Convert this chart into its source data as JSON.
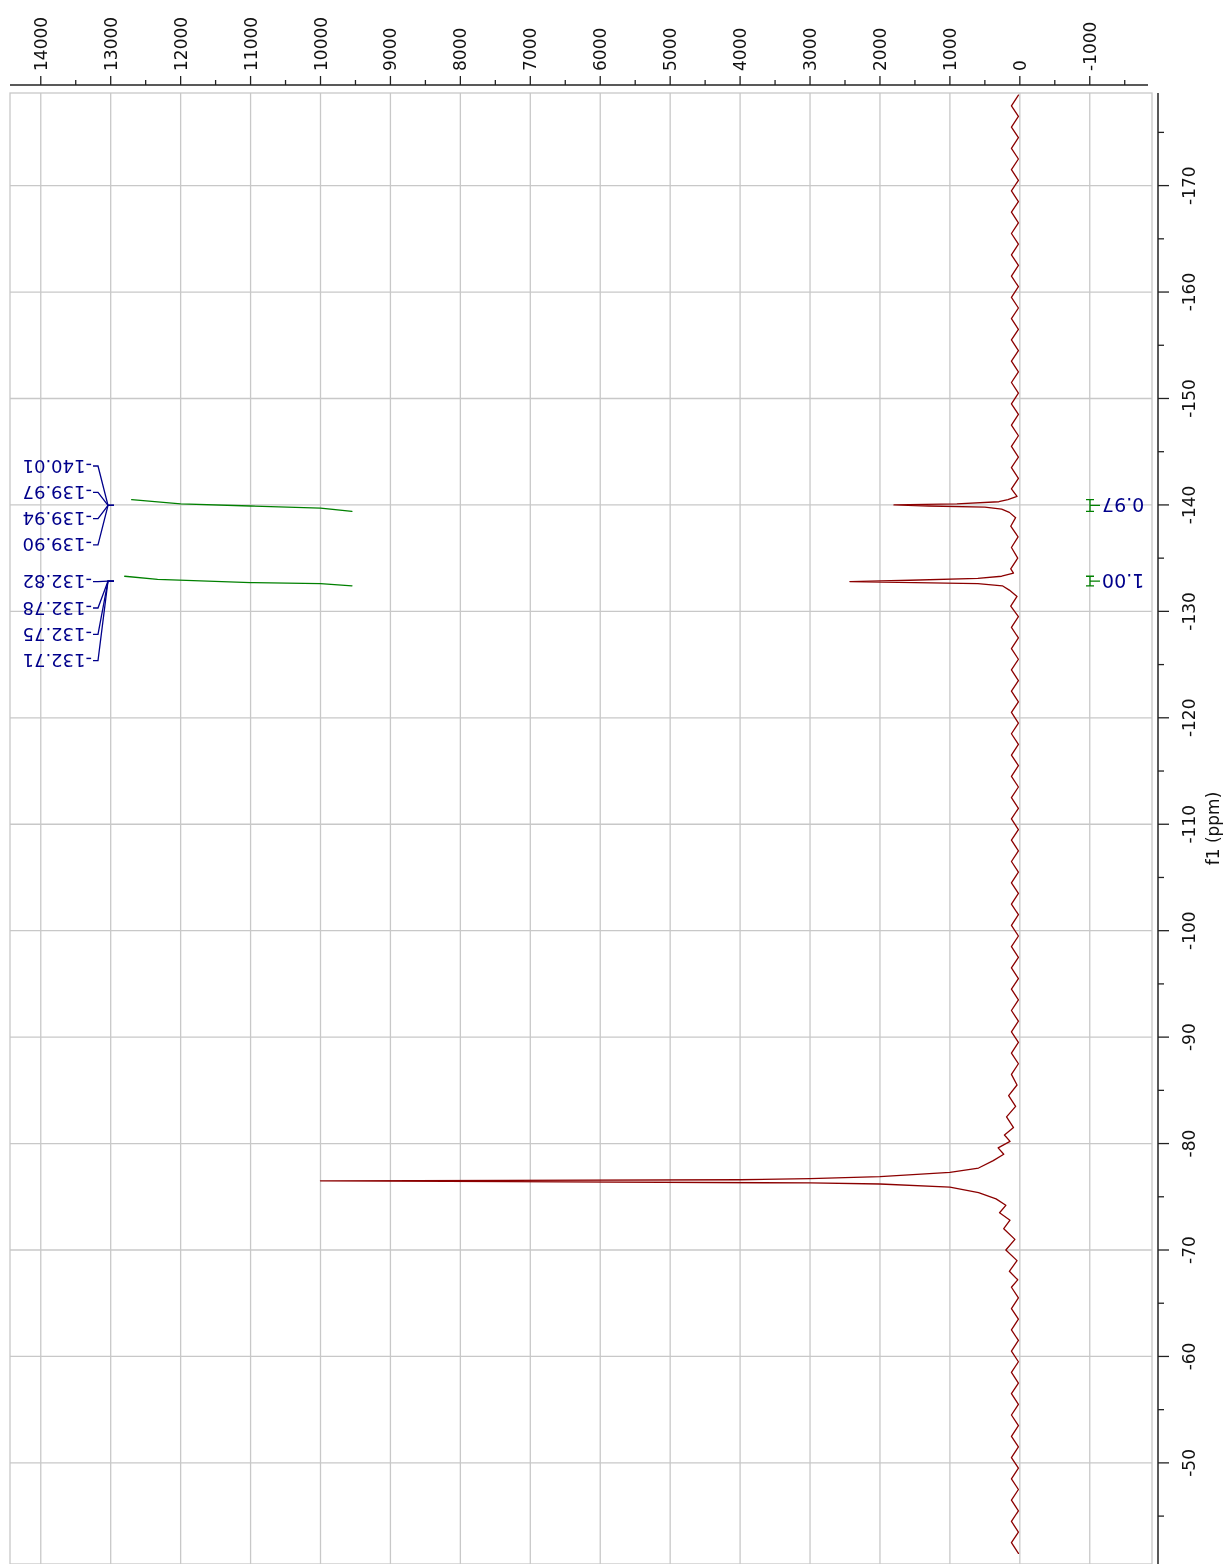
{
  "chart_data": {
    "type": "line",
    "ylabel": "f1 (ppm)",
    "series": [
      {
        "color": "#8b0000",
        "x": [
          20,
          120,
          20,
          120,
          20,
          120,
          20,
          120,
          20,
          120,
          20,
          120,
          20,
          120,
          20,
          120,
          20,
          120,
          20,
          120,
          20,
          120,
          20,
          120,
          20,
          120,
          20,
          120,
          20,
          120,
          20,
          120,
          20,
          120,
          20,
          120,
          20,
          120,
          40,
          170,
          300,
          900,
          1800,
          1300,
          500,
          260,
          150,
          60,
          130,
          25,
          120,
          30,
          130,
          90,
          260,
          600,
          1700,
          2430,
          1500,
          600,
          250,
          150,
          40,
          130,
          20,
          120,
          20,
          120,
          20,
          120,
          20,
          120,
          20,
          120,
          20,
          120,
          20,
          120,
          20,
          120,
          20,
          120,
          20,
          120,
          20,
          120,
          20,
          120,
          20,
          120,
          20,
          120,
          20,
          120,
          20,
          120,
          20,
          120,
          20,
          120,
          20,
          120,
          20,
          120,
          20,
          120,
          20,
          120,
          40,
          160,
          60,
          190,
          90,
          220,
          140,
          310,
          230,
          380,
          590,
          1000,
          2000,
          3000,
          4000,
          10000,
          3000,
          2000,
          1000,
          590,
          340,
          200,
          290,
          140,
          230,
          70,
          200,
          40,
          150,
          30,
          120,
          20,
          120,
          20,
          120,
          20,
          120,
          20,
          120,
          20,
          120,
          20,
          120,
          20,
          120,
          20,
          120,
          20,
          120,
          20,
          120,
          20,
          120,
          20,
          120,
          20
        ],
        "values": [
          -178.5,
          -177.5,
          -176.5,
          -175.5,
          -174.5,
          -173.5,
          -172.5,
          -171.5,
          -170.5,
          -169.5,
          -168.5,
          -167.5,
          -166.5,
          -165.5,
          -164.5,
          -163.5,
          -162.5,
          -161.5,
          -160.5,
          -159.5,
          -158.5,
          -157.5,
          -156.5,
          -155.5,
          -154.5,
          -153.5,
          -152.5,
          -151.5,
          -150.5,
          -149.5,
          -148.5,
          -147.5,
          -146.5,
          -145.5,
          -144.5,
          -143.5,
          -142.5,
          -141.5,
          -140.8,
          -140.5,
          -140.3,
          -140.1,
          -140,
          -139.9,
          -139.8,
          -139.6,
          -139.3,
          -138.8,
          -138,
          -137,
          -136,
          -135,
          -134,
          -133.6,
          -133.3,
          -133.1,
          -132.9,
          -132.8,
          -132.7,
          -132.6,
          -132.4,
          -132,
          -131.4,
          -130.5,
          -129.5,
          -128.5,
          -127.5,
          -126.5,
          -125.5,
          -124.5,
          -123.5,
          -122.5,
          -121.5,
          -120.5,
          -119.5,
          -118.5,
          -117.5,
          -116.5,
          -115.5,
          -114.5,
          -113.5,
          -112.5,
          -111.5,
          -110.5,
          -109.5,
          -108.5,
          -107.5,
          -106.5,
          -105.5,
          -104.5,
          -103.5,
          -102.5,
          -101.5,
          -100.5,
          -99.5,
          -98.5,
          -97.5,
          -96.5,
          -95.5,
          -94.5,
          -93.5,
          -92.5,
          -91.5,
          -90.5,
          -89.5,
          -88.5,
          -87.5,
          -86.5,
          -85.5,
          -84.5,
          -83.5,
          -82.5,
          -81.5,
          -80.8,
          -80.2,
          -79.6,
          -79,
          -78.4,
          -77.7,
          -77.3,
          -76.9,
          -76.7,
          -76.6,
          -76.5,
          -76.3,
          -76.2,
          -75.9,
          -75.4,
          -74.8,
          -74.2,
          -73.5,
          -72.8,
          -72,
          -71,
          -70,
          -69,
          -68,
          -67.2,
          -66.5,
          -65.5,
          -64.5,
          -63.5,
          -62.5,
          -61.5,
          -60.5,
          -59.5,
          -58.5,
          -57.5,
          -56.5,
          -55.5,
          -54.5,
          -53.5,
          -52.5,
          -51.5,
          -50.5,
          -49.5,
          -48.5,
          -47.5,
          -46.5,
          -45.5,
          -44.5,
          -43.5,
          -42.5,
          -41.5
        ]
      },
      {
        "color": "#008000",
        "x": [
          12700,
          12000,
          11000,
          10000,
          9550
        ],
        "values": [
          -140.5,
          -140.1,
          -139.9,
          -139.7,
          -139.4
        ]
      },
      {
        "color": "#008000",
        "x": [
          12800,
          12330,
          11000,
          10000,
          9550
        ],
        "values": [
          -133.3,
          -133,
          -132.7,
          -132.6,
          -132.4
        ]
      }
    ],
    "xlim": [
      14440,
      -1890
    ],
    "ylim": [
      -40.5,
      -178.7
    ],
    "xticks": [
      14000,
      {
        "value": 13500,
        "label": null
      },
      13000,
      {
        "value": 12500,
        "label": null
      },
      12000,
      {
        "value": 11500,
        "label": null
      },
      11000,
      {
        "value": 10500,
        "label": null
      },
      10000,
      {
        "value": 9500,
        "label": null
      },
      9000,
      {
        "value": 8500,
        "label": null
      },
      8000,
      {
        "value": 7500,
        "label": null
      },
      7000,
      {
        "value": 6500,
        "label": null
      },
      6000,
      {
        "value": 5500,
        "label": null
      },
      5000,
      {
        "value": 4500,
        "label": null
      },
      4000,
      {
        "value": 3500,
        "label": null
      },
      3000,
      {
        "value": 2500,
        "label": null
      },
      2000,
      {
        "value": 1500,
        "label": null
      },
      1000,
      {
        "value": 500,
        "label": null
      },
      0,
      {
        "value": -500,
        "label": null
      },
      -1000,
      {
        "value": -1500,
        "label": null
      }
    ],
    "yticks": [
      {
        "value": -175,
        "label": null
      },
      -170,
      {
        "value": -165,
        "label": null
      },
      -160,
      {
        "value": -155,
        "label": null
      },
      -150,
      {
        "value": -145,
        "label": null
      },
      -140,
      {
        "value": -135,
        "label": null
      },
      -130,
      {
        "value": -125,
        "label": null
      },
      -120,
      {
        "value": -115,
        "label": null
      },
      -110,
      {
        "value": -105,
        "label": null
      },
      -100,
      {
        "value": -95,
        "label": null
      },
      -90,
      {
        "value": -85,
        "label": null
      },
      -80,
      {
        "value": -75,
        "label": null
      },
      -70,
      {
        "value": -65,
        "label": null
      },
      -60,
      {
        "value": -55,
        "label": null
      },
      -50,
      {
        "value": -45,
        "label": null
      }
    ],
    "grid": true,
    "annotations": [
      "-140.01",
      "-139.97",
      "-139.94",
      "-139.90",
      "-132.82",
      "-132.78",
      "-132.75",
      "-132.71",
      "0.97",
      "1.00"
    ]
  }
}
